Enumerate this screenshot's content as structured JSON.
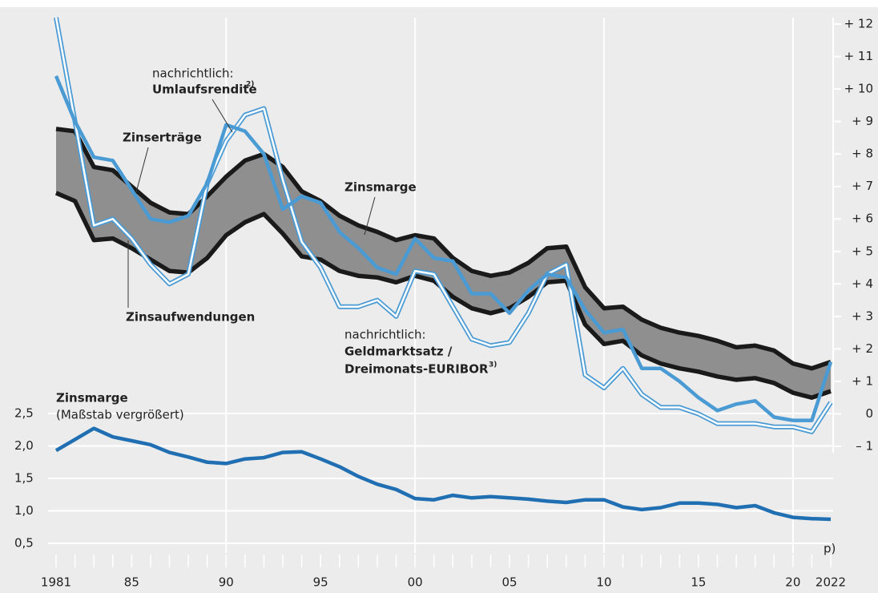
{
  "chart_data": [
    {
      "type": "line",
      "x": [
        1981,
        1982,
        1983,
        1984,
        1985,
        1986,
        1987,
        1988,
        1989,
        1990,
        1991,
        1992,
        1993,
        1994,
        1995,
        1996,
        1997,
        1998,
        1999,
        2000,
        2001,
        2002,
        2003,
        2004,
        2005,
        2006,
        2007,
        2008,
        2009,
        2010,
        2011,
        2012,
        2013,
        2014,
        2015,
        2016,
        2017,
        2018,
        2019,
        2020,
        2021,
        2022
      ],
      "xlim": [
        1981,
        2022
      ],
      "ylim": [
        -1,
        12
      ],
      "yticks": [
        {
          "value": 12,
          "label": "+ 12"
        },
        {
          "value": 11,
          "label": "+ 11"
        },
        {
          "value": 10,
          "label": "+ 10"
        },
        {
          "value": 9,
          "label": "+ 9"
        },
        {
          "value": 8,
          "label": "+ 8"
        },
        {
          "value": 7,
          "label": "+ 7"
        },
        {
          "value": 6,
          "label": "+ 6"
        },
        {
          "value": 5,
          "label": "+ 5"
        },
        {
          "value": 4,
          "label": "+ 4"
        },
        {
          "value": 3,
          "label": "+ 3"
        },
        {
          "value": 2,
          "label": "+ 2"
        },
        {
          "value": 1,
          "label": "+ 1"
        },
        0,
        {
          "value": -1,
          "label": "– 1"
        }
      ],
      "series": [
        {
          "name": "Zinserträge",
          "color": "#1a1a1a",
          "values": [
            8.77,
            8.7,
            7.6,
            7.5,
            7.0,
            6.5,
            6.2,
            6.15,
            6.7,
            7.3,
            7.8,
            8.0,
            7.6,
            6.85,
            6.55,
            6.1,
            5.8,
            5.6,
            5.35,
            5.5,
            5.4,
            4.8,
            4.4,
            4.25,
            4.35,
            4.65,
            5.1,
            5.15,
            3.9,
            3.25,
            3.3,
            2.9,
            2.65,
            2.5,
            2.4,
            2.25,
            2.05,
            2.1,
            1.95,
            1.55,
            1.4,
            1.6
          ]
        },
        {
          "name": "Zinsaufwendungen",
          "color": "#1a1a1a",
          "values": [
            6.8,
            6.55,
            5.35,
            5.4,
            5.1,
            4.75,
            4.4,
            4.35,
            4.8,
            5.5,
            5.9,
            6.15,
            5.55,
            4.85,
            4.75,
            4.4,
            4.25,
            4.2,
            4.05,
            4.25,
            4.1,
            3.6,
            3.25,
            3.1,
            3.25,
            3.6,
            4.05,
            4.1,
            2.75,
            2.15,
            2.25,
            1.8,
            1.55,
            1.4,
            1.3,
            1.15,
            1.05,
            1.1,
            0.95,
            0.65,
            0.5,
            0.7
          ]
        },
        {
          "name": "Umlaufsrendite",
          "footnote": "2)",
          "color": "#4a9ad4",
          "values": [
            10.4,
            9.0,
            7.9,
            7.8,
            6.9,
            6.0,
            5.9,
            6.1,
            7.1,
            8.9,
            8.7,
            8.0,
            6.3,
            6.7,
            6.5,
            5.6,
            5.1,
            4.5,
            4.3,
            5.4,
            4.8,
            4.7,
            3.7,
            3.7,
            3.1,
            3.8,
            4.3,
            4.2,
            3.2,
            2.5,
            2.6,
            1.4,
            1.4,
            1.0,
            0.5,
            0.1,
            0.3,
            0.4,
            -0.1,
            -0.2,
            -0.2,
            1.6
          ]
        },
        {
          "name_lines": [
            "Geldmarktsatz /",
            "Dreimonats-EURIBOR"
          ],
          "footnote": "3)",
          "color": "#4a9ad4",
          "values": [
            12.2,
            9.0,
            5.8,
            6.0,
            5.4,
            4.6,
            4.0,
            4.3,
            7.1,
            8.4,
            9.2,
            9.4,
            7.2,
            5.3,
            4.5,
            3.3,
            3.3,
            3.5,
            3.0,
            4.4,
            4.3,
            3.3,
            2.3,
            2.1,
            2.2,
            3.1,
            4.3,
            4.6,
            1.2,
            0.8,
            1.4,
            0.6,
            0.2,
            0.2,
            0.0,
            -0.3,
            -0.3,
            -0.3,
            -0.4,
            -0.4,
            -0.55,
            0.35
          ]
        }
      ],
      "band": {
        "name": "Zinsmarge",
        "color": "#8f8f8f",
        "between": [
          0,
          1
        ]
      },
      "annotations": [
        "nachrichtlich:",
        "nachrichtlich:"
      ]
    },
    {
      "type": "line",
      "title": "Zinsmarge",
      "subtitle": "(Maßstab vergrößert)",
      "x": [
        1981,
        1982,
        1983,
        1984,
        1985,
        1986,
        1987,
        1988,
        1989,
        1990,
        1991,
        1992,
        1993,
        1994,
        1995,
        1996,
        1997,
        1998,
        1999,
        2000,
        2001,
        2002,
        2003,
        2004,
        2005,
        2006,
        2007,
        2008,
        2009,
        2010,
        2011,
        2012,
        2013,
        2014,
        2015,
        2016,
        2017,
        2018,
        2019,
        2020,
        2021,
        2022
      ],
      "xlim": [
        1981,
        2022
      ],
      "xticks": [
        1981,
        {
          "value": 1985,
          "label": "85"
        },
        {
          "value": 1990,
          "label": "90"
        },
        {
          "value": 1995,
          "label": "95"
        },
        {
          "value": 2000,
          "label": "00"
        },
        {
          "value": 2005,
          "label": "05"
        },
        {
          "value": 2010,
          "label": "10"
        },
        {
          "value": 2015,
          "label": "15"
        },
        {
          "value": 2020,
          "label": "20"
        },
        2022
      ],
      "ylim": [
        0.5,
        2.5
      ],
      "yticks": [
        {
          "value": 2.5,
          "label": "2,5"
        },
        {
          "value": 2.0,
          "label": "2,0"
        },
        {
          "value": 1.5,
          "label": "1,5"
        },
        {
          "value": 1.0,
          "label": "1,0"
        },
        {
          "value": 0.5,
          "label": "0,5"
        }
      ],
      "grid": true,
      "color": "#1f6fb2",
      "values": [
        1.93,
        2.1,
        2.27,
        2.14,
        2.08,
        2.02,
        1.9,
        1.83,
        1.75,
        1.73,
        1.8,
        1.82,
        1.9,
        1.91,
        1.8,
        1.68,
        1.53,
        1.41,
        1.33,
        1.19,
        1.17,
        1.24,
        1.2,
        1.22,
        1.2,
        1.18,
        1.15,
        1.13,
        1.17,
        1.17,
        1.06,
        1.02,
        1.05,
        1.12,
        1.12,
        1.1,
        1.05,
        1.08,
        0.97,
        0.9,
        0.88,
        0.87
      ],
      "annotations": [
        "p)"
      ]
    }
  ]
}
